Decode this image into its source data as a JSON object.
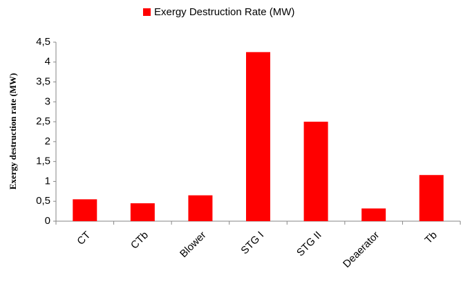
{
  "chart_data": {
    "type": "bar",
    "ylabel": "Exergy destruction rate (MW)",
    "categories": [
      "CT",
      "CTb",
      "Blower",
      "STG I",
      "STG II",
      "Deaerator",
      "Tb"
    ],
    "series": [
      {
        "name": "Exergy Destruction  Rate (MW)",
        "color": "#ff0000",
        "values": [
          0.55,
          0.45,
          0.65,
          4.25,
          2.5,
          0.32,
          1.16
        ]
      }
    ],
    "ylim": [
      0,
      4.5
    ],
    "yticks": [
      0,
      {
        "value": 0.5,
        "label": "0,5"
      },
      1,
      {
        "value": 1.5,
        "label": "1,5"
      },
      2,
      {
        "value": 2.5,
        "label": "2,5"
      },
      3,
      {
        "value": 3.5,
        "label": "3,5"
      },
      4,
      {
        "value": 4.5,
        "label": "4,5"
      }
    ],
    "grid": false,
    "legend": "top"
  }
}
